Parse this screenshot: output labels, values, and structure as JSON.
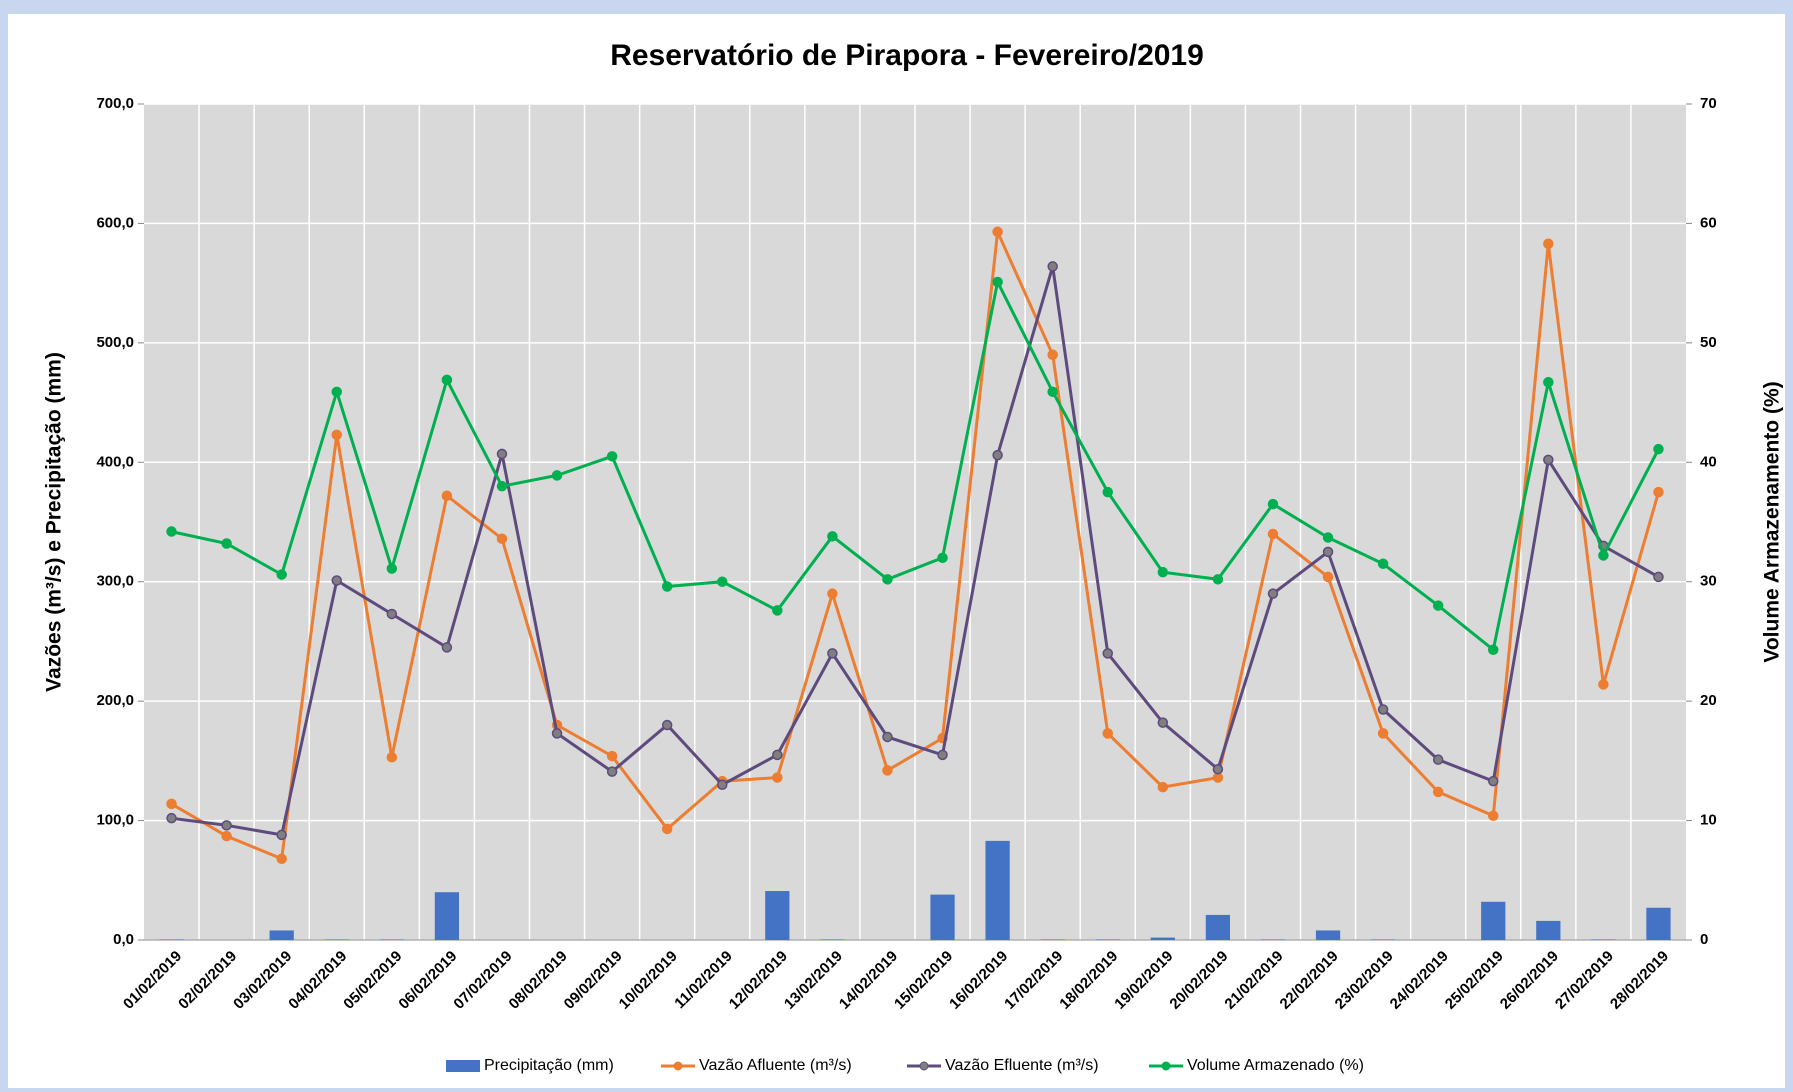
{
  "chart_data": {
    "type": "bar-line",
    "title": "Reservatório de Pirapora - Fevereiro/2019",
    "ylabel": "Vazões (m³/s) e Precipitação (mm)",
    "y2label": "Volume Armazenamento (%)",
    "categories": [
      "01/02/2019",
      "02/02/2019",
      "03/02/2019",
      "04/02/2019",
      "05/02/2019",
      "06/02/2019",
      "07/02/2019",
      "08/02/2019",
      "09/02/2019",
      "10/02/2019",
      "11/02/2019",
      "12/02/2019",
      "13/02/2019",
      "14/02/2019",
      "15/02/2019",
      "16/02/2019",
      "17/02/2019",
      "18/02/2019",
      "19/02/2019",
      "20/02/2019",
      "21/02/2019",
      "22/02/2019",
      "23/02/2019",
      "24/02/2019",
      "25/02/2019",
      "26/02/2019",
      "27/02/2019",
      "28/02/2019"
    ],
    "series": [
      {
        "name": "Precipitação (mm)",
        "type": "bar",
        "color": "#4472c4",
        "values": [
          0.5,
          0,
          8,
          0.5,
          0.5,
          40,
          0,
          0,
          0,
          0,
          0,
          41,
          0.5,
          0,
          38,
          83,
          0.5,
          0.5,
          2,
          21,
          0.5,
          8,
          0.5,
          0,
          32,
          16,
          0.5,
          27
        ]
      },
      {
        "name": "Vazão Afluente (m³/s)",
        "type": "line",
        "color": "#ed7d31",
        "marker_color": "#ed7d31",
        "values": [
          114,
          87,
          68,
          423,
          153,
          372,
          336,
          180,
          154,
          93,
          133,
          136,
          290,
          142,
          169,
          593,
          490,
          173,
          128,
          136,
          340,
          304,
          173,
          124,
          104,
          583,
          214,
          375
        ]
      },
      {
        "name": "Vazão Efluente (m³/s)",
        "type": "line",
        "color": "#5e4b7e",
        "marker_color": "#7f7f7f",
        "values": [
          102,
          96,
          88,
          301,
          273,
          245,
          407,
          173,
          141,
          180,
          130,
          155,
          240,
          170,
          155,
          406,
          564,
          240,
          182,
          143,
          290,
          325,
          193,
          151,
          133,
          402,
          330,
          304
        ]
      },
      {
        "name": "Volume Armazenado (%)",
        "type": "line",
        "axis": "y2",
        "color": "#00b050",
        "marker_color": "#00b050",
        "values": [
          34.2,
          33.2,
          30.6,
          45.9,
          31.1,
          46.9,
          38.0,
          38.9,
          40.5,
          29.6,
          30.0,
          27.6,
          33.8,
          30.2,
          32.0,
          55.1,
          45.9,
          37.5,
          30.8,
          30.2,
          36.5,
          33.7,
          31.5,
          28.0,
          24.3,
          46.7,
          32.2,
          41.1
        ]
      }
    ],
    "ylim": [
      0,
      700
    ],
    "yticks": [
      {
        "value": 0,
        "label": "0,0"
      },
      {
        "value": 100,
        "label": "100,0"
      },
      {
        "value": 200,
        "label": "200,0"
      },
      {
        "value": 300,
        "label": "300,0"
      },
      {
        "value": 400,
        "label": "400,0"
      },
      {
        "value": 500,
        "label": "500,0"
      },
      {
        "value": 600,
        "label": "600,0"
      },
      {
        "value": 700,
        "label": "700,0"
      }
    ],
    "y2lim": [
      0,
      70
    ],
    "y2ticks": [
      0,
      10,
      20,
      30,
      40,
      50,
      60,
      70
    ],
    "grid": true,
    "legend": "bottom"
  }
}
